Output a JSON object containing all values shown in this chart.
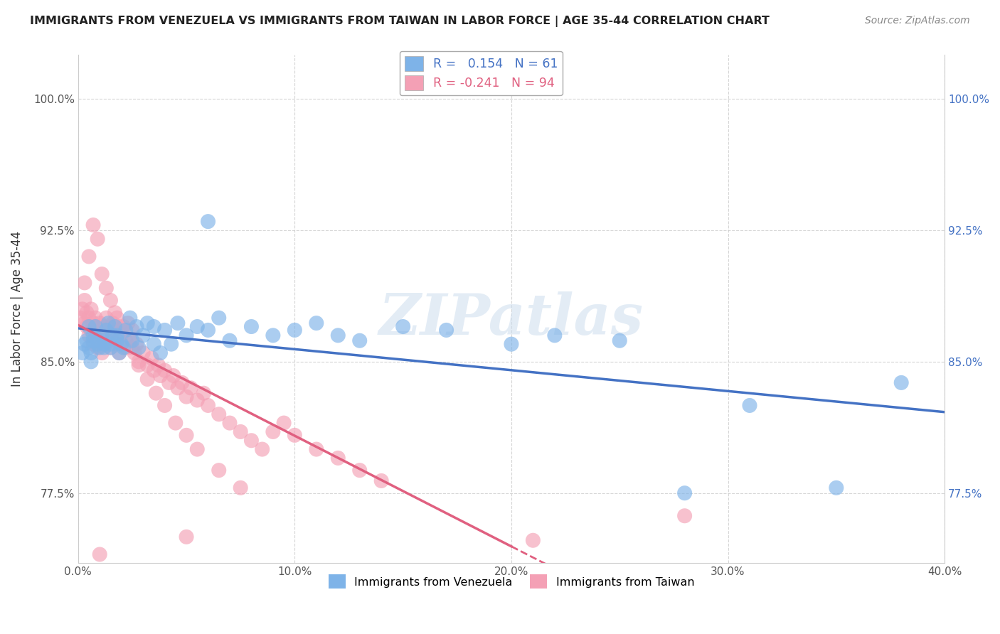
{
  "title": "IMMIGRANTS FROM VENEZUELA VS IMMIGRANTS FROM TAIWAN IN LABOR FORCE | AGE 35-44 CORRELATION CHART",
  "source": "Source: ZipAtlas.com",
  "xlabel": "",
  "ylabel": "In Labor Force | Age 35-44",
  "xlim": [
    0.0,
    0.4
  ],
  "ylim": [
    0.735,
    1.025
  ],
  "xticks": [
    0.0,
    0.1,
    0.2,
    0.3,
    0.4
  ],
  "xtick_labels": [
    "0.0%",
    "10.0%",
    "20.0%",
    "30.0%",
    "40.0%"
  ],
  "yticks": [
    0.775,
    0.85,
    0.925,
    1.0
  ],
  "ytick_labels": [
    "77.5%",
    "85.0%",
    "92.5%",
    "100.0%"
  ],
  "R_venezuela": 0.154,
  "N_venezuela": 61,
  "R_taiwan": -0.241,
  "N_taiwan": 94,
  "venezuela_color": "#7EB3E8",
  "taiwan_color": "#F4A0B5",
  "venezuela_line_color": "#4472C4",
  "taiwan_line_color": "#E06080",
  "watermark": "ZIPatlas",
  "background_color": "#FFFFFF",
  "grid_color": "#CCCCCC",
  "venezuela_x": [
    0.002,
    0.003,
    0.004,
    0.005,
    0.005,
    0.006,
    0.007,
    0.007,
    0.008,
    0.009,
    0.01,
    0.011,
    0.012,
    0.013,
    0.014,
    0.015,
    0.016,
    0.017,
    0.018,
    0.019,
    0.02,
    0.022,
    0.024,
    0.025,
    0.027,
    0.028,
    0.03,
    0.032,
    0.035,
    0.038,
    0.04,
    0.043,
    0.046,
    0.05,
    0.055,
    0.06,
    0.065,
    0.07,
    0.08,
    0.09,
    0.1,
    0.11,
    0.12,
    0.13,
    0.15,
    0.17,
    0.2,
    0.22,
    0.25,
    0.28,
    0.31,
    0.35,
    0.38,
    0.006,
    0.009,
    0.012,
    0.015,
    0.018,
    0.021,
    0.035,
    0.06
  ],
  "venezuela_y": [
    0.855,
    0.86,
    0.862,
    0.858,
    0.87,
    0.855,
    0.862,
    0.865,
    0.87,
    0.86,
    0.858,
    0.865,
    0.86,
    0.868,
    0.872,
    0.858,
    0.865,
    0.87,
    0.862,
    0.855,
    0.86,
    0.868,
    0.875,
    0.862,
    0.87,
    0.858,
    0.865,
    0.872,
    0.86,
    0.855,
    0.868,
    0.86,
    0.872,
    0.865,
    0.87,
    0.868,
    0.875,
    0.862,
    0.87,
    0.865,
    0.868,
    0.872,
    0.865,
    0.862,
    0.87,
    0.868,
    0.86,
    0.865,
    0.862,
    0.775,
    0.825,
    0.778,
    0.838,
    0.85,
    0.862,
    0.858,
    0.86,
    0.865,
    0.858,
    0.87,
    0.93
  ],
  "taiwan_x": [
    0.001,
    0.002,
    0.003,
    0.003,
    0.004,
    0.004,
    0.005,
    0.005,
    0.006,
    0.006,
    0.007,
    0.007,
    0.008,
    0.008,
    0.009,
    0.009,
    0.01,
    0.01,
    0.011,
    0.011,
    0.012,
    0.012,
    0.013,
    0.013,
    0.014,
    0.015,
    0.015,
    0.016,
    0.016,
    0.017,
    0.018,
    0.018,
    0.019,
    0.02,
    0.021,
    0.022,
    0.023,
    0.024,
    0.025,
    0.026,
    0.027,
    0.028,
    0.03,
    0.032,
    0.034,
    0.035,
    0.037,
    0.038,
    0.04,
    0.042,
    0.044,
    0.046,
    0.048,
    0.05,
    0.052,
    0.055,
    0.058,
    0.06,
    0.065,
    0.07,
    0.075,
    0.08,
    0.085,
    0.09,
    0.095,
    0.1,
    0.11,
    0.12,
    0.13,
    0.14,
    0.003,
    0.005,
    0.007,
    0.009,
    0.011,
    0.013,
    0.015,
    0.017,
    0.019,
    0.022,
    0.025,
    0.028,
    0.032,
    0.036,
    0.04,
    0.045,
    0.05,
    0.055,
    0.065,
    0.075,
    0.21,
    0.28,
    0.01,
    0.05
  ],
  "taiwan_y": [
    0.875,
    0.88,
    0.872,
    0.885,
    0.87,
    0.878,
    0.865,
    0.875,
    0.868,
    0.88,
    0.872,
    0.86,
    0.875,
    0.865,
    0.87,
    0.858,
    0.872,
    0.862,
    0.868,
    0.855,
    0.87,
    0.86,
    0.875,
    0.862,
    0.865,
    0.87,
    0.858,
    0.872,
    0.862,
    0.868,
    0.86,
    0.875,
    0.855,
    0.865,
    0.87,
    0.858,
    0.872,
    0.862,
    0.868,
    0.855,
    0.86,
    0.85,
    0.855,
    0.848,
    0.852,
    0.845,
    0.848,
    0.842,
    0.845,
    0.838,
    0.842,
    0.835,
    0.838,
    0.83,
    0.835,
    0.828,
    0.832,
    0.825,
    0.82,
    0.815,
    0.81,
    0.805,
    0.8,
    0.81,
    0.815,
    0.808,
    0.8,
    0.795,
    0.788,
    0.782,
    0.895,
    0.91,
    0.928,
    0.92,
    0.9,
    0.892,
    0.885,
    0.878,
    0.87,
    0.862,
    0.858,
    0.848,
    0.84,
    0.832,
    0.825,
    0.815,
    0.808,
    0.8,
    0.788,
    0.778,
    0.748,
    0.762,
    0.74,
    0.75
  ]
}
